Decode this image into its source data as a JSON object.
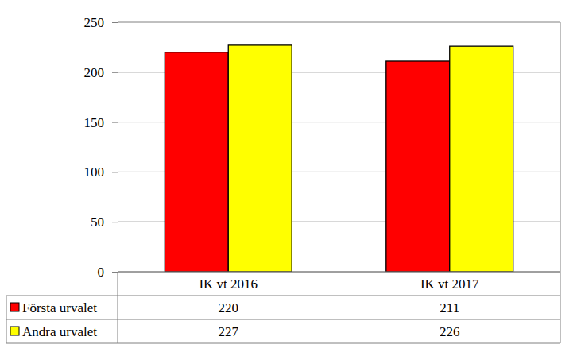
{
  "chart_data": {
    "type": "bar",
    "categories": [
      "IK vt 2016",
      "IK vt 2017"
    ],
    "series": [
      {
        "name": "Första urvalet",
        "color": "#ff0000",
        "values": [
          220,
          211
        ]
      },
      {
        "name": "Andra urvalet",
        "color": "#ffff00",
        "values": [
          227,
          226
        ]
      }
    ],
    "ylim": [
      0,
      250
    ],
    "yticks": [
      0,
      50,
      100,
      150,
      200,
      250
    ],
    "grid": true
  }
}
